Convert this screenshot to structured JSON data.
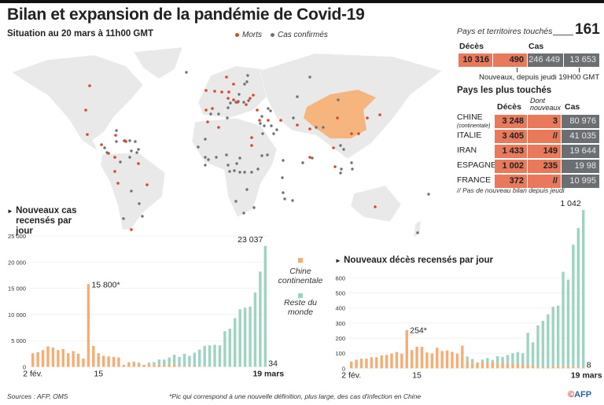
{
  "header": {
    "title": "Bilan et expansion de la pandémie de Covid-19",
    "subtitle": "Situation au 20 mars à 11h00 GMT"
  },
  "map": {
    "legend": {
      "deaths": "Morts",
      "cases": "Cas confirmés"
    },
    "colors": {
      "land": "#e9e9e9",
      "china": "#f6b47e",
      "deaths_dot": "#d9472b",
      "cases_dot": "#6d7075"
    },
    "highlighted_country": "Chine"
  },
  "summary": {
    "countries_label": "Pays et territoires touchés",
    "countries_count": "161",
    "deaths_header": "Décès",
    "cases_header": "Cas",
    "deaths_total": "10 316",
    "deaths_new": "490",
    "cases_total": "246 449",
    "cases_new": "13 653",
    "new_note": "Nouveaux, depuis jeudi 19H00 GMT"
  },
  "top_countries": {
    "title": "Pays les plus touchés",
    "col_deaths": "Décès",
    "col_new": "Dont nouveaux",
    "col_cases": "Cas",
    "rows": [
      {
        "country": "CHINE",
        "note": "(continentale)",
        "deaths": "3 248",
        "new": "3",
        "cases": "80 976"
      },
      {
        "country": "ITALIE",
        "note": "",
        "deaths": "3 405",
        "new": "//",
        "cases": "41 035"
      },
      {
        "country": "IRAN",
        "note": "",
        "deaths": "1 433",
        "new": "149",
        "cases": "19 644"
      },
      {
        "country": "ESPAGNE",
        "note": "",
        "deaths": "1 002",
        "new": "235",
        "cases": "19 98"
      },
      {
        "country": "FRANCE",
        "note": "",
        "deaths": "372",
        "new": "//",
        "cases": "10 995"
      }
    ],
    "footnote": "// Pas de nouveau bilan depuis jeudi"
  },
  "legend_series": {
    "china": "Chine continentale",
    "rest": "Reste du monde",
    "china_color": "#f4ad74",
    "rest_color": "#9ed3c2"
  },
  "chart_data": [
    {
      "type": "bar",
      "stacked": true,
      "title": "Nouveaux cas recensés par jour",
      "x_range": [
        "2020-02-02",
        "2020-03-19"
      ],
      "x_tick_labels": [
        "2 fév.",
        "15",
        "19 mars"
      ],
      "y_ticks": [
        0,
        5000,
        10000,
        15000,
        20000,
        25000
      ],
      "y_tick_labels": [
        "0",
        "5 000",
        "10 000",
        "15 000",
        "20 000",
        "25 000"
      ],
      "ylim": [
        0,
        25000
      ],
      "grid": true,
      "annotations": [
        "15 800*",
        "23 037",
        "34"
      ],
      "series": [
        {
          "name": "Chine continentale",
          "values": [
            2600,
            2800,
            3200,
            3900,
            3700,
            3200,
            3400,
            2600,
            3000,
            2500,
            1600,
            15800,
            4000,
            2600,
            2100,
            2000,
            1900,
            1800,
            400,
            890,
            800,
            650,
            400,
            500,
            400,
            430,
            330,
            430,
            570,
            200,
            125,
            120,
            140,
            100,
            45,
            40,
            20,
            20,
            25,
            15,
            8,
            11,
            20,
            16,
            21,
            13,
            34
          ]
        },
        {
          "name": "Reste du monde",
          "values": [
            0,
            0,
            0,
            0,
            0,
            0,
            0,
            0,
            0,
            0,
            0,
            0,
            0,
            0,
            0,
            0,
            0,
            0,
            0,
            10,
            200,
            150,
            0,
            300,
            500,
            970,
            1070,
            1370,
            1730,
            1700,
            2375,
            1980,
            2560,
            3200,
            3955,
            4060,
            4180,
            4080,
            6775,
            7285,
            9292,
            10989,
            11280,
            11484,
            14179,
            18187,
            23037
          ]
        }
      ]
    },
    {
      "type": "bar",
      "stacked": true,
      "title": "Nouveaux décès recensés par jour",
      "x_range": [
        "2020-02-02",
        "2020-03-19"
      ],
      "x_tick_labels": [
        "2 fév.",
        "15",
        "19 mars"
      ],
      "y_ticks": [
        0,
        100,
        200,
        300,
        400,
        500,
        600
      ],
      "y_tick_labels": [
        "0",
        "100",
        "200",
        "300",
        "400",
        "500",
        "600"
      ],
      "ylim": [
        0,
        1050
      ],
      "grid": true,
      "annotations": [
        "254*",
        "1 042",
        "8"
      ],
      "series": [
        {
          "name": "Chine continentale",
          "values": [
            45,
            57,
            64,
            65,
            73,
            73,
            86,
            89,
            97,
            108,
            97,
            254,
            121,
            143,
            142,
            105,
            98,
            136,
            115,
            118,
            109,
            97,
            150,
            52,
            29,
            38,
            44,
            35,
            42,
            31,
            38,
            31,
            30,
            28,
            27,
            22,
            17,
            11,
            7,
            10,
            14,
            13,
            11,
            13,
            11,
            8,
            8
          ]
        },
        {
          "name": "Reste du monde",
          "values": [
            0,
            0,
            0,
            0,
            0,
            0,
            0,
            0,
            0,
            0,
            0,
            0,
            0,
            0,
            0,
            0,
            0,
            0,
            0,
            0,
            0,
            0,
            0,
            26,
            33,
            0,
            14,
            33,
            13,
            49,
            38,
            57,
            70,
            80,
            73,
            213,
            155,
            274,
            308,
            348,
            394,
            403,
            629,
            575,
            809,
            922,
            1042
          ]
        }
      ]
    }
  ],
  "footer": {
    "sources": "Sources : AFP, OMS",
    "note": "*Pic qui correspond à une nouvelle définition, plus large, des cas d'infection en Chine",
    "logo": "AFP"
  }
}
